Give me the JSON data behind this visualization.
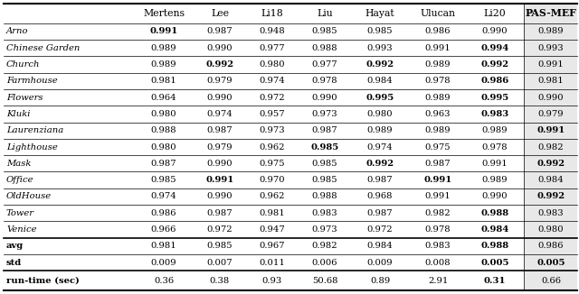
{
  "columns": [
    "",
    "Mertens",
    "Lee",
    "Li18",
    "Liu",
    "Hayat",
    "Ulucan",
    "Li20",
    "PAS-MEF"
  ],
  "rows": [
    {
      "name": "Arno",
      "values": [
        "0.991",
        "0.987",
        "0.948",
        "0.985",
        "0.985",
        "0.986",
        "0.990",
        "0.989"
      ],
      "bold_indices": [
        0
      ]
    },
    {
      "name": "Chinese Garden",
      "values": [
        "0.989",
        "0.990",
        "0.977",
        "0.988",
        "0.993",
        "0.991",
        "0.994",
        "0.993"
      ],
      "bold_indices": [
        6
      ]
    },
    {
      "name": "Church",
      "values": [
        "0.989",
        "0.992",
        "0.980",
        "0.977",
        "0.992",
        "0.989",
        "0.992",
        "0.991"
      ],
      "bold_indices": [
        1,
        4,
        6
      ]
    },
    {
      "name": "Farmhouse",
      "values": [
        "0.981",
        "0.979",
        "0.974",
        "0.978",
        "0.984",
        "0.978",
        "0.986",
        "0.981"
      ],
      "bold_indices": [
        6
      ]
    },
    {
      "name": "Flowers",
      "values": [
        "0.964",
        "0.990",
        "0.972",
        "0.990",
        "0.995",
        "0.989",
        "0.995",
        "0.990"
      ],
      "bold_indices": [
        4,
        6
      ]
    },
    {
      "name": "Kluki",
      "values": [
        "0.980",
        "0.974",
        "0.957",
        "0.973",
        "0.980",
        "0.963",
        "0.983",
        "0.979"
      ],
      "bold_indices": [
        6
      ]
    },
    {
      "name": "Laurenziana",
      "values": [
        "0.988",
        "0.987",
        "0.973",
        "0.987",
        "0.989",
        "0.989",
        "0.989",
        "0.991"
      ],
      "bold_indices": [
        7
      ]
    },
    {
      "name": "Lighthouse",
      "values": [
        "0.980",
        "0.979",
        "0.962",
        "0.985",
        "0.974",
        "0.975",
        "0.978",
        "0.982"
      ],
      "bold_indices": [
        3
      ]
    },
    {
      "name": "Mask",
      "values": [
        "0.987",
        "0.990",
        "0.975",
        "0.985",
        "0.992",
        "0.987",
        "0.991",
        "0.992"
      ],
      "bold_indices": [
        4,
        7
      ]
    },
    {
      "name": "Office",
      "values": [
        "0.985",
        "0.991",
        "0.970",
        "0.985",
        "0.987",
        "0.991",
        "0.989",
        "0.984"
      ],
      "bold_indices": [
        1,
        5
      ]
    },
    {
      "name": "OldHouse",
      "values": [
        "0.974",
        "0.990",
        "0.962",
        "0.988",
        "0.968",
        "0.991",
        "0.990",
        "0.992"
      ],
      "bold_indices": [
        7
      ]
    },
    {
      "name": "Tower",
      "values": [
        "0.986",
        "0.987",
        "0.981",
        "0.983",
        "0.987",
        "0.982",
        "0.988",
        "0.983"
      ],
      "bold_indices": [
        6
      ]
    },
    {
      "name": "Venice",
      "values": [
        "0.966",
        "0.972",
        "0.947",
        "0.973",
        "0.972",
        "0.978",
        "0.984",
        "0.980"
      ],
      "bold_indices": [
        6
      ]
    }
  ],
  "avg_row": {
    "name": "avg",
    "values": [
      "0.981",
      "0.985",
      "0.967",
      "0.982",
      "0.984",
      "0.983",
      "0.988",
      "0.986"
    ],
    "bold_indices": [
      6
    ]
  },
  "std_row": {
    "name": "std",
    "values": [
      "0.009",
      "0.007",
      "0.011",
      "0.006",
      "0.009",
      "0.008",
      "0.005",
      "0.005"
    ],
    "bold_indices": [
      6,
      7
    ]
  },
  "runtime_row": {
    "name": "run-time (sec)",
    "values": [
      "0.36",
      "0.38",
      "0.93",
      "50.68",
      "0.89",
      "2.91",
      "0.31",
      "0.66"
    ],
    "bold_indices": [
      6
    ]
  },
  "bg_color": "#ffffff",
  "pas_mef_bg": "#e8e8e8",
  "thick_lw": 1.5,
  "thin_lw": 0.5,
  "sep_lw": 1.2,
  "fontsize": 7.2,
  "header_fontsize": 7.8
}
